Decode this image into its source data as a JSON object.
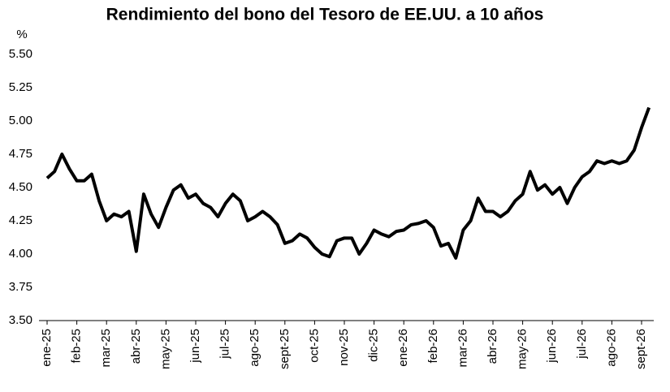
{
  "chart_data": {
    "type": "line",
    "title": "Rendimiento del bono del Tesoro de EE.UU. a 10 años",
    "ylabel": "%",
    "categories": [
      "ene-25",
      null,
      null,
      null,
      "feb-25",
      null,
      null,
      null,
      "mar-25",
      null,
      null,
      null,
      "abr-25",
      null,
      null,
      null,
      "may-25",
      null,
      null,
      null,
      "jun-25",
      null,
      null,
      null,
      "jul-25",
      null,
      null,
      null,
      "ago-25",
      null,
      null,
      null,
      "sept-25",
      null,
      null,
      null,
      "oct-25",
      null,
      null,
      null,
      "nov-25",
      null,
      null,
      null,
      "dic-25",
      null,
      null,
      null,
      "ene-26",
      null,
      null,
      null,
      "feb-26",
      null,
      null,
      null,
      "mar-26",
      null,
      null,
      null,
      "abr-26",
      null,
      null,
      null,
      "may-26",
      null,
      null,
      null,
      "jun-26",
      null,
      null,
      null,
      "jul-26",
      null,
      null,
      null,
      "ago-26",
      null,
      null,
      null,
      "sept-26",
      null
    ],
    "series": [
      {
        "color": "#000000",
        "values": [
          4.57,
          4.62,
          4.75,
          4.64,
          4.55,
          4.55,
          4.6,
          4.4,
          4.25,
          4.3,
          4.28,
          4.32,
          4.02,
          4.45,
          4.3,
          4.2,
          4.35,
          4.48,
          4.52,
          4.42,
          4.45,
          4.38,
          4.35,
          4.28,
          4.38,
          4.45,
          4.4,
          4.25,
          4.28,
          4.32,
          4.28,
          4.22,
          4.08,
          4.1,
          4.15,
          4.12,
          4.05,
          4.0,
          3.98,
          4.1,
          4.12,
          4.12,
          4.0,
          4.08,
          4.18,
          4.15,
          4.13,
          4.17,
          4.18,
          4.22,
          4.23,
          4.25,
          4.2,
          4.06,
          4.08,
          3.97,
          4.18,
          4.25,
          4.42,
          4.32,
          4.32,
          4.28,
          4.32,
          4.4,
          4.45,
          4.62,
          4.48,
          4.52,
          4.45,
          4.5,
          4.38,
          4.5,
          4.58,
          4.62,
          4.7,
          4.68,
          4.7,
          4.68,
          4.7,
          4.78,
          4.95,
          5.1
        ]
      }
    ],
    "ylim": [
      3.5,
      5.5
    ],
    "yticks": [
      {
        "value": 3.5,
        "label": "3.50"
      },
      {
        "value": 3.75,
        "label": "3.75"
      },
      {
        "value": 4,
        "label": "4.00"
      },
      {
        "value": 4.25,
        "label": "4.25"
      },
      {
        "value": 4.5,
        "label": "4.50"
      },
      {
        "value": 4.75,
        "label": "4.75"
      },
      {
        "value": 5,
        "label": "5.00"
      },
      {
        "value": 5.25,
        "label": "5.25"
      },
      {
        "value": 5.5,
        "label": "5.50"
      }
    ],
    "grid": false
  }
}
